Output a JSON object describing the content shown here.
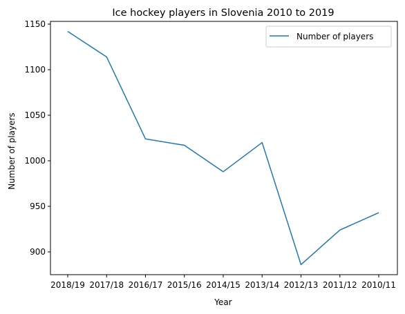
{
  "chart_data": {
    "type": "line",
    "title": "Ice hockey players in Slovenia 2010 to 2019",
    "xlabel": "Year",
    "ylabel": "Number of players",
    "categories": [
      "2018/19",
      "2017/18",
      "2016/17",
      "2015/16",
      "2014/15",
      "2013/14",
      "2012/13",
      "2011/12",
      "2010/11"
    ],
    "series": [
      {
        "name": "Number of players",
        "color": "#1f77b4",
        "values": [
          1142,
          1114,
          1024,
          1017,
          988,
          1020,
          886,
          924,
          943
        ]
      }
    ],
    "yticks": [
      900,
      950,
      1000,
      1050,
      1100,
      1150
    ],
    "ylim": [
      875,
      1153
    ],
    "grid": false,
    "legend_position": "top-right"
  }
}
